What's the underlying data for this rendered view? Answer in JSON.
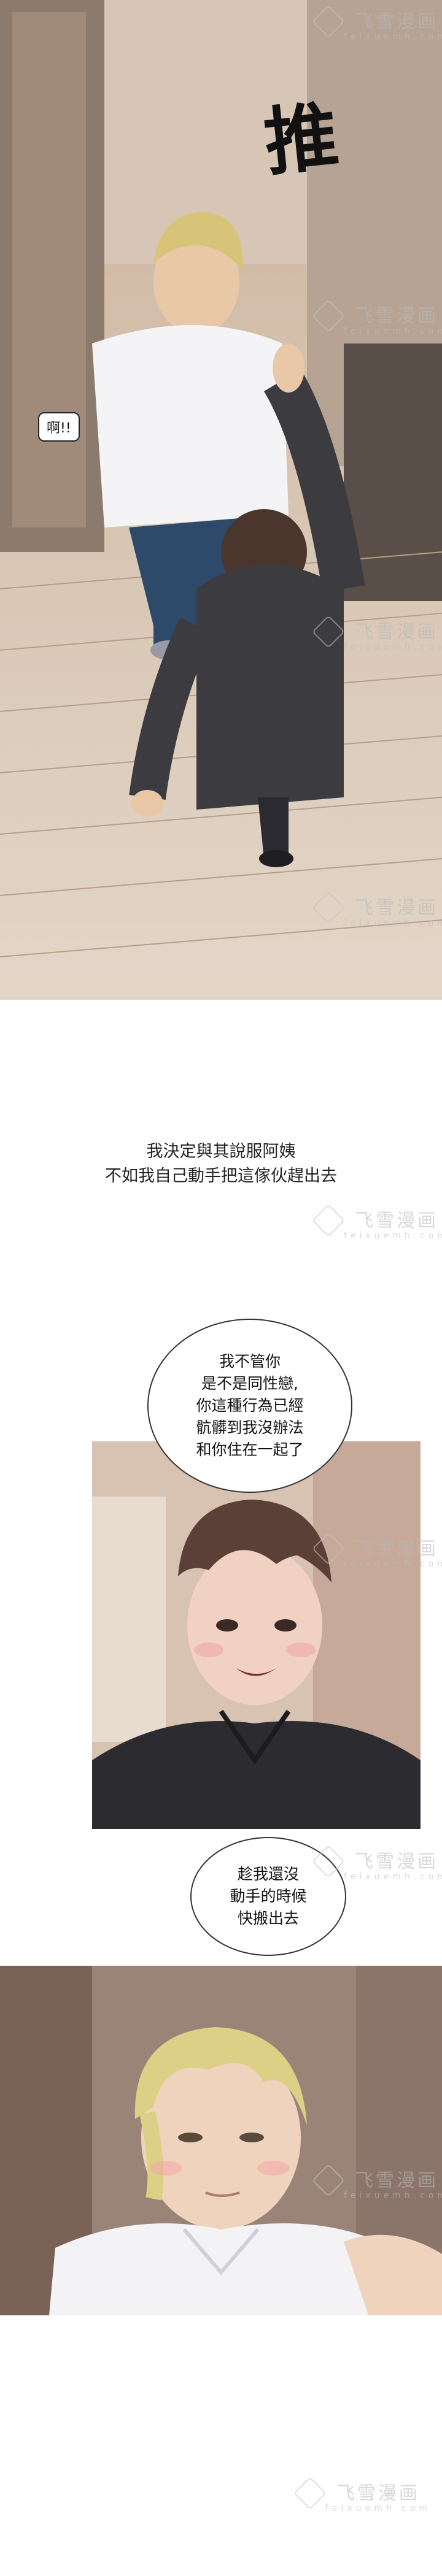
{
  "panel1": {
    "sfx": "推",
    "shout": "啊!!"
  },
  "caption": {
    "line1": "我決定與其說服阿姨",
    "line2": "不如我自己動手把這傢伙趕出去"
  },
  "bubble1": {
    "text": "我不管你\n是不是同性戀,\n你這種行為已經\n骯髒到我沒辦法\n和你住在一起了"
  },
  "bubble2": {
    "text": "趁我還沒\n動手的時候\n快搬出去"
  },
  "watermark": {
    "cn": "飞雪漫画",
    "en": "feixuemh.com"
  }
}
